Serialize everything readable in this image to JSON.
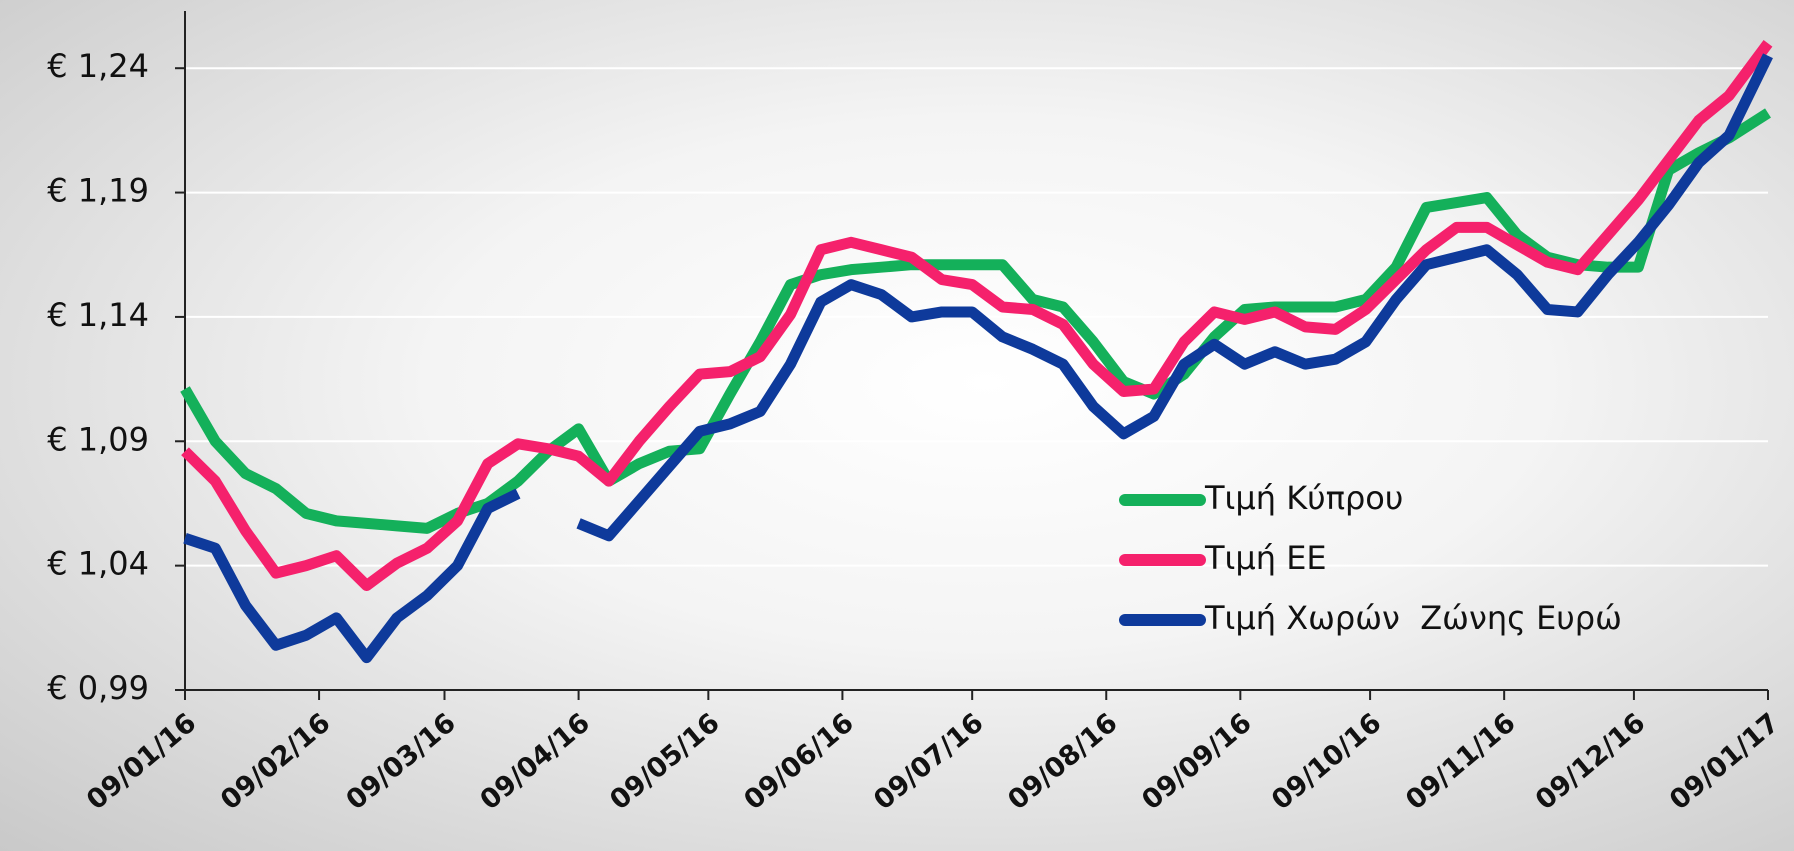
{
  "chart_data": {
    "type": "line",
    "x": [
      "09/01/16",
      "16/01/16",
      "23/01/16",
      "30/01/16",
      "06/02/16",
      "13/02/16",
      "20/02/16",
      "27/02/16",
      "05/03/16",
      "12/03/16",
      "19/03/16",
      "26/03/16",
      "02/04/16",
      "09/04/16",
      "16/04/16",
      "23/04/16",
      "30/04/16",
      "07/05/16",
      "14/05/16",
      "21/05/16",
      "28/05/16",
      "04/06/16",
      "11/06/16",
      "18/06/16",
      "25/06/16",
      "02/07/16",
      "09/07/16",
      "16/07/16",
      "23/07/16",
      "30/07/16",
      "06/08/16",
      "13/08/16",
      "20/08/16",
      "27/08/16",
      "03/09/16",
      "10/09/16",
      "17/09/16",
      "24/09/16",
      "01/10/16",
      "08/10/16",
      "15/10/16",
      "22/10/16",
      "29/10/16",
      "05/11/16",
      "12/11/16",
      "19/11/16",
      "26/11/16",
      "03/12/16",
      "10/12/16",
      "17/12/16",
      "24/12/16",
      "31/12/16",
      "09/01/17"
    ],
    "series": [
      {
        "name": "Τιμή Κύπρου",
        "color": "#14b05a",
        "values": [
          1.111,
          1.09,
          1.077,
          1.071,
          1.061,
          1.058,
          1.057,
          1.056,
          1.055,
          1.061,
          1.065,
          1.074,
          1.086,
          1.095,
          1.074,
          1.081,
          1.086,
          1.087,
          1.109,
          1.13,
          1.153,
          1.157,
          1.159,
          1.16,
          1.161,
          1.161,
          1.161,
          1.161,
          1.147,
          1.144,
          1.13,
          1.114,
          1.109,
          1.117,
          1.132,
          1.143,
          1.144,
          1.144,
          1.144,
          1.147,
          1.16,
          1.184,
          1.186,
          1.188,
          1.173,
          1.164,
          1.161,
          1.16,
          1.16,
          1.199,
          1.206,
          1.212,
          1.222
        ]
      },
      {
        "name": "Τιμή ΕΕ",
        "color": "#f5216c",
        "values": [
          1.086,
          1.074,
          1.054,
          1.037,
          1.04,
          1.044,
          1.032,
          1.041,
          1.047,
          1.058,
          1.081,
          1.089,
          1.087,
          1.084,
          1.074,
          1.09,
          1.104,
          1.117,
          1.118,
          1.124,
          1.141,
          1.167,
          1.17,
          1.167,
          1.164,
          1.155,
          1.153,
          1.144,
          1.143,
          1.137,
          1.121,
          1.11,
          1.111,
          1.13,
          1.142,
          1.139,
          1.142,
          1.136,
          1.135,
          1.143,
          1.155,
          1.167,
          1.176,
          1.176,
          1.169,
          1.162,
          1.159,
          1.173,
          1.187,
          1.203,
          1.219,
          1.229,
          1.25
        ]
      },
      {
        "name": "Τιμή Χωρών  Ζώνης Ευρώ",
        "color": "#0e3a9b",
        "values": [
          1.051,
          1.047,
          1.024,
          1.008,
          1.012,
          1.019,
          1.003,
          1.019,
          1.028,
          1.04,
          1.063,
          1.069,
          null,
          1.057,
          1.052,
          1.066,
          1.08,
          1.094,
          1.097,
          1.102,
          1.121,
          1.146,
          1.153,
          1.149,
          1.14,
          1.142,
          1.142,
          1.132,
          1.127,
          1.121,
          1.104,
          1.093,
          1.1,
          1.121,
          1.129,
          1.121,
          1.126,
          1.121,
          1.123,
          1.13,
          1.147,
          1.161,
          1.164,
          1.167,
          1.157,
          1.143,
          1.142,
          1.157,
          1.17,
          1.185,
          1.202,
          1.213,
          1.245
        ]
      }
    ],
    "xlim": [
      "09/01/16",
      "09/01/17"
    ],
    "xticks": [
      "09/01/16",
      "09/02/16",
      "09/03/16",
      "09/04/16",
      "09/05/16",
      "09/06/16",
      "09/07/16",
      "09/08/16",
      "09/09/16",
      "09/10/16",
      "09/11/16",
      "09/12/16",
      "09/01/17"
    ],
    "ylim": [
      0.99,
      1.263
    ],
    "yticks": [
      {
        "value": 0.99,
        "label": "€ 0,99"
      },
      {
        "value": 1.04,
        "label": "€ 1,04"
      },
      {
        "value": 1.09,
        "label": "€ 1,09"
      },
      {
        "value": 1.14,
        "label": "€ 1,14"
      },
      {
        "value": 1.19,
        "label": "€ 1,19"
      },
      {
        "value": 1.24,
        "label": "€ 1,24"
      }
    ],
    "grid": true,
    "legend": "lower right"
  }
}
